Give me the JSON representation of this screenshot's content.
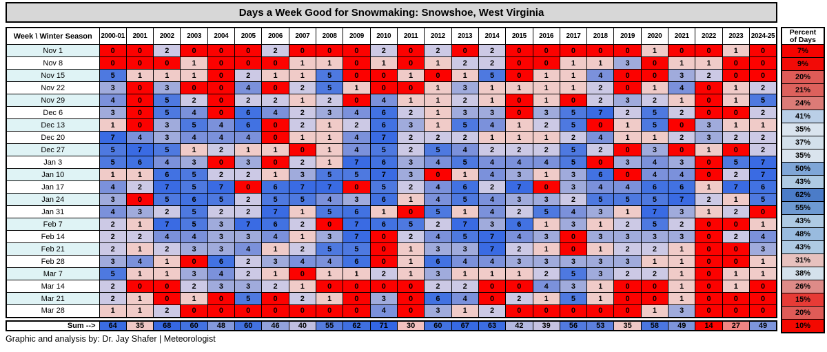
{
  "title": "Days a Week Good for Snowmaking: Snowshoe, West Virginia",
  "footer": "Graphic and analysis by: Dr. Jay Shafer | Meteorologist",
  "header": {
    "corner": "Week  \\ Winter Season",
    "percent_line1": "Percent",
    "percent_line2": "of Days"
  },
  "sum_row": {
    "label": "Sum -->"
  },
  "chart_data": {
    "type": "heatmap",
    "title": "Days a Week Good for Snowmaking: Snowshoe, West Virginia",
    "x_label": "Winter Season",
    "y_label": "Week",
    "x_categories": [
      "2000-01",
      "2001",
      "2002",
      "2003",
      "2004",
      "2005",
      "2006",
      "2007",
      "2008",
      "2009",
      "2010",
      "2011",
      "2012",
      "2013",
      "2014",
      "2015",
      "2016",
      "2017",
      "2018",
      "2019",
      "2020",
      "2021",
      "2022",
      "2023",
      "2024-25"
    ],
    "y_categories": [
      "Nov 1",
      "Nov 8",
      "Nov 15",
      "Nov 22",
      "Nov 29",
      "Dec 6",
      "Dec 13",
      "Dec 20",
      "Dec 27",
      "Jan 3",
      "Jan 10",
      "Jan 17",
      "Jan 24",
      "Jan 31",
      "Feb 7",
      "Feb 14",
      "Feb 21",
      "Feb 28",
      "Mar 7",
      "Mar 14",
      "Mar 21",
      "Mar 28"
    ],
    "values": [
      [
        0,
        0,
        2,
        0,
        0,
        0,
        2,
        0,
        0,
        0,
        2,
        0,
        2,
        0,
        2,
        0,
        0,
        0,
        0,
        0,
        1,
        0,
        0,
        1,
        0
      ],
      [
        0,
        0,
        0,
        1,
        0,
        0,
        0,
        1,
        1,
        0,
        1,
        0,
        1,
        2,
        2,
        0,
        0,
        1,
        1,
        3,
        0,
        1,
        1,
        0,
        0
      ],
      [
        5,
        1,
        1,
        1,
        0,
        2,
        1,
        1,
        5,
        0,
        0,
        1,
        0,
        1,
        5,
        0,
        1,
        1,
        4,
        0,
        0,
        3,
        2,
        0,
        0
      ],
      [
        3,
        0,
        3,
        0,
        0,
        4,
        0,
        2,
        5,
        1,
        0,
        0,
        1,
        3,
        1,
        1,
        1,
        1,
        2,
        0,
        1,
        4,
        0,
        1,
        2
      ],
      [
        4,
        0,
        5,
        2,
        0,
        2,
        2,
        1,
        2,
        0,
        4,
        1,
        1,
        2,
        1,
        0,
        1,
        0,
        2,
        3,
        2,
        1,
        0,
        1,
        5
      ],
      [
        3,
        0,
        5,
        4,
        0,
        6,
        4,
        2,
        3,
        4,
        6,
        2,
        1,
        3,
        3,
        0,
        3,
        5,
        7,
        2,
        5,
        2,
        0,
        0,
        2
      ],
      [
        1,
        0,
        3,
        5,
        4,
        6,
        0,
        2,
        1,
        2,
        6,
        3,
        1,
        5,
        4,
        1,
        2,
        5,
        0,
        1,
        5,
        0,
        3,
        1,
        1
      ],
      [
        7,
        4,
        3,
        4,
        4,
        4,
        0,
        1,
        1,
        4,
        7,
        2,
        2,
        2,
        1,
        1,
        1,
        2,
        4,
        1,
        1,
        2,
        3,
        2,
        2
      ],
      [
        5,
        7,
        5,
        1,
        2,
        1,
        1,
        0,
        1,
        4,
        5,
        2,
        5,
        4,
        2,
        2,
        2,
        5,
        2,
        0,
        3,
        0,
        1,
        0,
        2
      ],
      [
        5,
        6,
        4,
        3,
        0,
        3,
        0,
        2,
        1,
        7,
        6,
        3,
        4,
        5,
        4,
        4,
        4,
        5,
        0,
        3,
        4,
        3,
        0,
        5,
        7
      ],
      [
        1,
        1,
        6,
        5,
        2,
        2,
        1,
        3,
        5,
        5,
        7,
        3,
        0,
        1,
        4,
        3,
        1,
        3,
        6,
        0,
        4,
        4,
        0,
        2,
        7
      ],
      [
        4,
        2,
        7,
        5,
        7,
        0,
        6,
        7,
        7,
        0,
        5,
        2,
        4,
        6,
        2,
        7,
        0,
        3,
        4,
        4,
        6,
        6,
        1,
        7,
        6
      ],
      [
        3,
        0,
        5,
        6,
        5,
        2,
        5,
        5,
        4,
        3,
        6,
        1,
        4,
        5,
        4,
        3,
        3,
        2,
        5,
        5,
        5,
        7,
        2,
        1,
        5
      ],
      [
        4,
        3,
        2,
        5,
        2,
        2,
        7,
        1,
        5,
        6,
        1,
        0,
        5,
        1,
        4,
        2,
        5,
        4,
        3,
        1,
        7,
        3,
        1,
        2,
        0
      ],
      [
        2,
        1,
        7,
        5,
        3,
        7,
        6,
        2,
        0,
        7,
        6,
        5,
        2,
        7,
        3,
        6,
        1,
        3,
        1,
        2,
        5,
        2,
        0,
        0,
        1
      ],
      [
        2,
        2,
        4,
        4,
        3,
        3,
        4,
        1,
        3,
        7,
        0,
        2,
        4,
        5,
        7,
        4,
        3,
        0,
        3,
        3,
        3,
        3,
        0,
        2,
        4
      ],
      [
        2,
        1,
        2,
        3,
        3,
        4,
        1,
        2,
        5,
        5,
        0,
        1,
        3,
        3,
        7,
        2,
        1,
        0,
        1,
        2,
        2,
        1,
        0,
        0,
        3
      ],
      [
        3,
        4,
        1,
        0,
        6,
        2,
        3,
        4,
        4,
        6,
        0,
        1,
        6,
        4,
        4,
        3,
        3,
        3,
        3,
        3,
        1,
        1,
        0,
        0,
        1
      ],
      [
        5,
        1,
        1,
        3,
        4,
        2,
        1,
        0,
        1,
        1,
        2,
        1,
        3,
        1,
        1,
        1,
        2,
        5,
        3,
        2,
        2,
        1,
        0,
        1,
        1
      ],
      [
        2,
        0,
        0,
        2,
        3,
        3,
        2,
        1,
        0,
        0,
        0,
        0,
        2,
        2,
        0,
        0,
        4,
        3,
        1,
        0,
        0,
        1,
        0,
        1,
        0
      ],
      [
        2,
        1,
        0,
        1,
        0,
        5,
        0,
        2,
        1,
        0,
        3,
        0,
        6,
        4,
        0,
        2,
        1,
        5,
        1,
        0,
        0,
        1,
        0,
        0,
        0
      ],
      [
        1,
        1,
        2,
        0,
        0,
        0,
        0,
        0,
        0,
        0,
        4,
        0,
        3,
        1,
        2,
        0,
        0,
        0,
        0,
        0,
        1,
        3,
        0,
        0,
        0
      ]
    ],
    "row_percent_of_days": [
      "7%",
      "9%",
      "20%",
      "21%",
      "24%",
      "41%",
      "35%",
      "37%",
      "35%",
      "50%",
      "43%",
      "62%",
      "55%",
      "43%",
      "48%",
      "43%",
      "31%",
      "38%",
      "26%",
      "15%",
      "20%",
      "10%"
    ],
    "column_sums": [
      64,
      35,
      68,
      60,
      48,
      60,
      46,
      40,
      55,
      62,
      71,
      30,
      60,
      67,
      63,
      42,
      39,
      56,
      53,
      35,
      58,
      49,
      14,
      27,
      49
    ],
    "value_range": [
      0,
      7
    ],
    "colors": {
      "value_palette": {
        "0": "#FC0200",
        "1": "#F0CBC8",
        "2": "#CCC9E5",
        "3": "#A0ABDC",
        "4": "#7B91DB",
        "5": "#4E79E0",
        "6": "#4272E2",
        "7": "#3A6BE3"
      },
      "percent_colors": {
        "7": "#F50300",
        "9": "#F20B07",
        "10": "#F40800",
        "15": "#E73B36",
        "20": "#DF5B57",
        "21": "#DD615C",
        "24": "#DC7B77",
        "26": "#DE8B88",
        "31": "#E7C1BE",
        "35": "#DAE4EE",
        "37": "#D3E0EB",
        "38": "#D4E1EC",
        "41": "#BACFE7",
        "43": "#AECAE3",
        "48": "#99BBDF",
        "50": "#7FA6D7",
        "55": "#6E9AD2",
        "62": "#4B7CC8"
      },
      "sum_colors": {
        "14": "#FC0200",
        "27": "#F08583",
        "30": "#F3C2C0",
        "35": "#EFC8C6",
        "39": "#C6C3E2",
        "40": "#C0BEE1",
        "42": "#B4B9E0",
        "46": "#92A2DB",
        "48": "#8499DB",
        "49": "#7E95DB",
        "53": "#5D80DD",
        "55": "#567CDE",
        "56": "#527ADF",
        "58": "#4B76E0",
        "60": "#4372E1",
        "62": "#3F6FE1",
        "63": "#3D6EE2",
        "64": "#3B6CE2",
        "67": "#376AE3",
        "68": "#3668E3",
        "71": "#3366E4"
      },
      "title_bar_bg": "#D7D7D7",
      "row_label_alt_bg": "#DFF3F5",
      "border": "#000000"
    }
  }
}
